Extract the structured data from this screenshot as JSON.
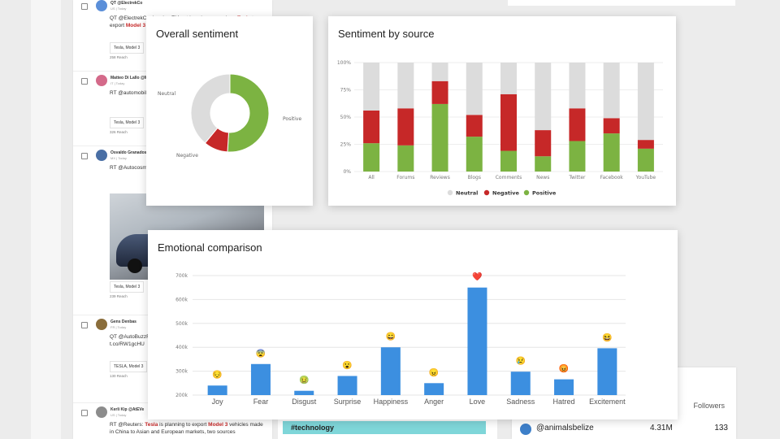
{
  "feed": {
    "items": [
      {
        "name": "QT @ElectrekCo",
        "meta": "US | Today",
        "text_pre": "QT @ElectrekCo: Ingoing EM not keeping a promise - ",
        "text_hl1": "Tesla",
        "text_mid": " to export ",
        "text_hl2": "Model 3",
        "text_post": " ... said they woul",
        "tag": "Tesla, Model 3",
        "reach": "258 Reach"
      },
      {
        "name": "Matteo Di Lallo @Me",
        "meta": "IT | Today",
        "text_pre": "RT @automobil",
        "text_hl1": "",
        "text_mid": " ... in pista t.co/Bc",
        "text_hl2": "",
        "text_post": "",
        "tag": "Tesla, Model 3",
        "reach": "326 Reach"
      },
      {
        "name": "Osvaldo Granados",
        "meta": "MX | Today",
        "text_pre": "RT @Autocosm",
        "text_hl1": "",
        "text_mid": " ... fabricado en Ch ... t.co/8t2sfsVqu",
        "text_hl2": "",
        "text_post": "",
        "tag": "Tesla, Model 3",
        "reach": "239 Reach"
      },
      {
        "name": "Gens Denbas",
        "meta": "FR | Today",
        "text_pre": "QT @AutoBuzzF ... avec les recette ... importer des ",
        "text_hl1": "Mo",
        "text_mid": " ... t.co/RW1gcHU",
        "text_hl2": "",
        "text_post": "",
        "tag": "TESLA, Model 3",
        "reach": "130 Reach"
      },
      {
        "name": "Kerli Kip @AtEVe",
        "meta": "US | Today",
        "text_pre": "RT @Reuters: ",
        "text_hl1": "Tesla",
        "text_mid": " is planning to export ",
        "text_hl2": "Model 3",
        "text_post": " vehicles made in China to Asian and European markets, two sources",
        "tag": "",
        "reach": ""
      }
    ]
  },
  "overall_sentiment": {
    "title": "Overall sentiment",
    "labels": {
      "neutral": "Neutral",
      "negative": "Negative",
      "positive": "Positive"
    },
    "colors": {
      "neutral": "#dcdcdc",
      "negative": "#c62828",
      "positive": "#7cb342"
    }
  },
  "sentiment_by_source": {
    "title": "Sentiment by source",
    "legend": [
      "Neutral",
      "Negative",
      "Positive"
    ],
    "y_ticks": [
      "0%",
      "25%",
      "50%",
      "75%",
      "100%"
    ]
  },
  "emotional_comparison": {
    "title": "Emotional comparison",
    "y_ticks": [
      "200k",
      "300k",
      "400k",
      "500k",
      "600k",
      "700k"
    ],
    "bar_color": "#3c8fe0"
  },
  "tag_bar": {
    "label": "#technology"
  },
  "followers": {
    "header": "Followers",
    "handle": "@animalsbelize",
    "count": "4.31M",
    "followers": "133"
  },
  "chart_data": [
    {
      "type": "pie",
      "title": "Overall sentiment",
      "categories": [
        "Positive",
        "Negative",
        "Neutral"
      ],
      "values": [
        51,
        10,
        39
      ]
    },
    {
      "type": "bar",
      "title": "Sentiment by source",
      "stacked": true,
      "categories": [
        "All",
        "Forums",
        "Reviews",
        "Blogs",
        "Comments",
        "News",
        "Twitter",
        "Facebook",
        "YouTube"
      ],
      "series": [
        {
          "name": "Positive",
          "values": [
            26,
            24,
            62,
            32,
            19,
            14,
            28,
            35,
            21
          ]
        },
        {
          "name": "Negative",
          "values": [
            30,
            34,
            21,
            20,
            52,
            24,
            30,
            14,
            8
          ]
        },
        {
          "name": "Neutral",
          "values": [
            44,
            42,
            17,
            48,
            29,
            62,
            42,
            51,
            71
          ]
        }
      ],
      "ylim": [
        0,
        100
      ],
      "legend": "bottom"
    },
    {
      "type": "bar",
      "title": "Emotional comparison",
      "categories": [
        "Joy",
        "Fear",
        "Disgust",
        "Surprise",
        "Happiness",
        "Anger",
        "Love",
        "Sadness",
        "Hatred",
        "Excitement"
      ],
      "values": [
        240,
        330,
        218,
        280,
        400,
        250,
        650,
        298,
        266,
        396
      ],
      "emoji": [
        "😔",
        "😨",
        "🤢",
        "😮",
        "😄",
        "😠",
        "❤️",
        "😢",
        "😡",
        "😆"
      ],
      "ylim": [
        200,
        700
      ],
      "ytick_unit": "k"
    }
  ]
}
